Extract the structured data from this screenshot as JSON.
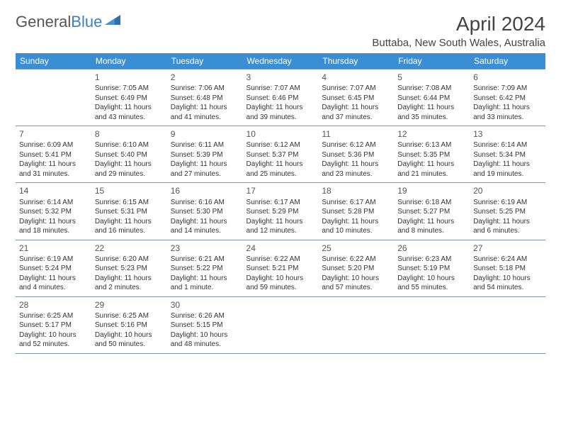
{
  "logo": {
    "text1": "General",
    "text2": "Blue"
  },
  "title": "April 2024",
  "location": "Buttaba, New South Wales, Australia",
  "colors": {
    "header_bg": "#3a8fd4",
    "header_fg": "#ffffff",
    "border": "#7a99b5",
    "logo_blue": "#3a7fc4"
  },
  "day_names": [
    "Sunday",
    "Monday",
    "Tuesday",
    "Wednesday",
    "Thursday",
    "Friday",
    "Saturday"
  ],
  "weeks": [
    [
      null,
      {
        "n": "1",
        "sr": "Sunrise: 7:05 AM",
        "ss": "Sunset: 6:49 PM",
        "d1": "Daylight: 11 hours",
        "d2": "and 43 minutes."
      },
      {
        "n": "2",
        "sr": "Sunrise: 7:06 AM",
        "ss": "Sunset: 6:48 PM",
        "d1": "Daylight: 11 hours",
        "d2": "and 41 minutes."
      },
      {
        "n": "3",
        "sr": "Sunrise: 7:07 AM",
        "ss": "Sunset: 6:46 PM",
        "d1": "Daylight: 11 hours",
        "d2": "and 39 minutes."
      },
      {
        "n": "4",
        "sr": "Sunrise: 7:07 AM",
        "ss": "Sunset: 6:45 PM",
        "d1": "Daylight: 11 hours",
        "d2": "and 37 minutes."
      },
      {
        "n": "5",
        "sr": "Sunrise: 7:08 AM",
        "ss": "Sunset: 6:44 PM",
        "d1": "Daylight: 11 hours",
        "d2": "and 35 minutes."
      },
      {
        "n": "6",
        "sr": "Sunrise: 7:09 AM",
        "ss": "Sunset: 6:42 PM",
        "d1": "Daylight: 11 hours",
        "d2": "and 33 minutes."
      }
    ],
    [
      {
        "n": "7",
        "sr": "Sunrise: 6:09 AM",
        "ss": "Sunset: 5:41 PM",
        "d1": "Daylight: 11 hours",
        "d2": "and 31 minutes."
      },
      {
        "n": "8",
        "sr": "Sunrise: 6:10 AM",
        "ss": "Sunset: 5:40 PM",
        "d1": "Daylight: 11 hours",
        "d2": "and 29 minutes."
      },
      {
        "n": "9",
        "sr": "Sunrise: 6:11 AM",
        "ss": "Sunset: 5:39 PM",
        "d1": "Daylight: 11 hours",
        "d2": "and 27 minutes."
      },
      {
        "n": "10",
        "sr": "Sunrise: 6:12 AM",
        "ss": "Sunset: 5:37 PM",
        "d1": "Daylight: 11 hours",
        "d2": "and 25 minutes."
      },
      {
        "n": "11",
        "sr": "Sunrise: 6:12 AM",
        "ss": "Sunset: 5:36 PM",
        "d1": "Daylight: 11 hours",
        "d2": "and 23 minutes."
      },
      {
        "n": "12",
        "sr": "Sunrise: 6:13 AM",
        "ss": "Sunset: 5:35 PM",
        "d1": "Daylight: 11 hours",
        "d2": "and 21 minutes."
      },
      {
        "n": "13",
        "sr": "Sunrise: 6:14 AM",
        "ss": "Sunset: 5:34 PM",
        "d1": "Daylight: 11 hours",
        "d2": "and 19 minutes."
      }
    ],
    [
      {
        "n": "14",
        "sr": "Sunrise: 6:14 AM",
        "ss": "Sunset: 5:32 PM",
        "d1": "Daylight: 11 hours",
        "d2": "and 18 minutes."
      },
      {
        "n": "15",
        "sr": "Sunrise: 6:15 AM",
        "ss": "Sunset: 5:31 PM",
        "d1": "Daylight: 11 hours",
        "d2": "and 16 minutes."
      },
      {
        "n": "16",
        "sr": "Sunrise: 6:16 AM",
        "ss": "Sunset: 5:30 PM",
        "d1": "Daylight: 11 hours",
        "d2": "and 14 minutes."
      },
      {
        "n": "17",
        "sr": "Sunrise: 6:17 AM",
        "ss": "Sunset: 5:29 PM",
        "d1": "Daylight: 11 hours",
        "d2": "and 12 minutes."
      },
      {
        "n": "18",
        "sr": "Sunrise: 6:17 AM",
        "ss": "Sunset: 5:28 PM",
        "d1": "Daylight: 11 hours",
        "d2": "and 10 minutes."
      },
      {
        "n": "19",
        "sr": "Sunrise: 6:18 AM",
        "ss": "Sunset: 5:27 PM",
        "d1": "Daylight: 11 hours",
        "d2": "and 8 minutes."
      },
      {
        "n": "20",
        "sr": "Sunrise: 6:19 AM",
        "ss": "Sunset: 5:25 PM",
        "d1": "Daylight: 11 hours",
        "d2": "and 6 minutes."
      }
    ],
    [
      {
        "n": "21",
        "sr": "Sunrise: 6:19 AM",
        "ss": "Sunset: 5:24 PM",
        "d1": "Daylight: 11 hours",
        "d2": "and 4 minutes."
      },
      {
        "n": "22",
        "sr": "Sunrise: 6:20 AM",
        "ss": "Sunset: 5:23 PM",
        "d1": "Daylight: 11 hours",
        "d2": "and 2 minutes."
      },
      {
        "n": "23",
        "sr": "Sunrise: 6:21 AM",
        "ss": "Sunset: 5:22 PM",
        "d1": "Daylight: 11 hours",
        "d2": "and 1 minute."
      },
      {
        "n": "24",
        "sr": "Sunrise: 6:22 AM",
        "ss": "Sunset: 5:21 PM",
        "d1": "Daylight: 10 hours",
        "d2": "and 59 minutes."
      },
      {
        "n": "25",
        "sr": "Sunrise: 6:22 AM",
        "ss": "Sunset: 5:20 PM",
        "d1": "Daylight: 10 hours",
        "d2": "and 57 minutes."
      },
      {
        "n": "26",
        "sr": "Sunrise: 6:23 AM",
        "ss": "Sunset: 5:19 PM",
        "d1": "Daylight: 10 hours",
        "d2": "and 55 minutes."
      },
      {
        "n": "27",
        "sr": "Sunrise: 6:24 AM",
        "ss": "Sunset: 5:18 PM",
        "d1": "Daylight: 10 hours",
        "d2": "and 54 minutes."
      }
    ],
    [
      {
        "n": "28",
        "sr": "Sunrise: 6:25 AM",
        "ss": "Sunset: 5:17 PM",
        "d1": "Daylight: 10 hours",
        "d2": "and 52 minutes."
      },
      {
        "n": "29",
        "sr": "Sunrise: 6:25 AM",
        "ss": "Sunset: 5:16 PM",
        "d1": "Daylight: 10 hours",
        "d2": "and 50 minutes."
      },
      {
        "n": "30",
        "sr": "Sunrise: 6:26 AM",
        "ss": "Sunset: 5:15 PM",
        "d1": "Daylight: 10 hours",
        "d2": "and 48 minutes."
      },
      null,
      null,
      null,
      null
    ]
  ]
}
